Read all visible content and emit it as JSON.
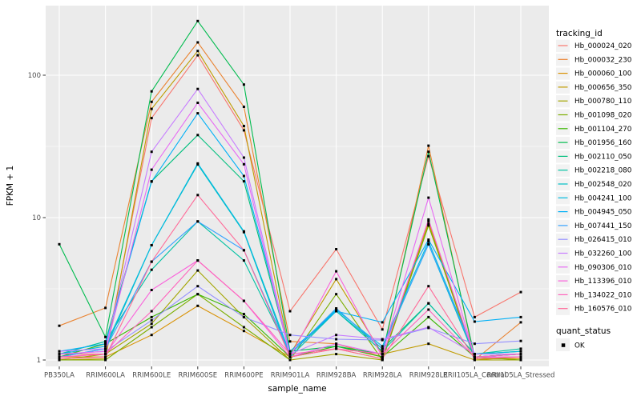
{
  "figure": {
    "y_axis": {
      "title": "FPKM + 1",
      "tick_labels": [
        "1",
        "10",
        "100"
      ],
      "tick_values": [
        1,
        10,
        100
      ]
    },
    "x_axis": {
      "title": "sample_name"
    },
    "legend": {
      "tracking_title": "tracking_id",
      "quant_title": "quant_status",
      "quant_entries": [
        {
          "label": "OK",
          "marker": "black-square"
        }
      ]
    },
    "colors": {
      "panel_background": "#EBEBEB",
      "gridline": "#FFFFFF",
      "axis_text": "#4D4D4D",
      "tick_mark": "#333333",
      "legend_key_background": "#F2F2F2",
      "point": "#000000"
    }
  },
  "chart_data": {
    "type": "line",
    "title": "",
    "xlabel": "sample_name",
    "ylabel": "FPKM + 1",
    "y_scale": "log10",
    "ylim": [
      0.9,
      316
    ],
    "y_major_ticks": [
      1,
      10,
      100
    ],
    "y_minor_ticks": [
      3.162,
      31.62,
      316.2
    ],
    "grid": "white major and minor on gray panel",
    "legend_position": "right",
    "point_marker": "black-square",
    "categories": [
      "PB350LA",
      "RRIM600LA",
      "RRIM600LE",
      "RRIM600SE",
      "RRIM600PE",
      "RRIM901LA",
      "RRIM928BA",
      "RRIM928LA",
      "RRIM928LE",
      "RRII105LA_Control",
      "RRII105LA_Stressed"
    ],
    "series": [
      {
        "name": "Hb_000024_020",
        "color": "#F8766D",
        "values": [
          1.1,
          1.1,
          50,
          138,
          41,
          2.2,
          6.0,
          1.64,
          27,
          2.0,
          3.0
        ]
      },
      {
        "name": "Hb_000032_230",
        "color": "#EA8331",
        "values": [
          1.74,
          2.32,
          65,
          170,
          60,
          1.35,
          1.3,
          1.05,
          32,
          1.0,
          1.84
        ]
      },
      {
        "name": "Hb_000060_100",
        "color": "#D89000",
        "values": [
          1.05,
          1.05,
          1.5,
          2.4,
          1.6,
          1.05,
          1.2,
          1.02,
          9.4,
          1.02,
          1.02
        ]
      },
      {
        "name": "Hb_000656_350",
        "color": "#C09B00",
        "values": [
          1.0,
          1.02,
          58,
          148,
          44,
          1.1,
          3.7,
          1.1,
          1.3,
          1.0,
          1.05
        ]
      },
      {
        "name": "Hb_000780_110",
        "color": "#A3A500",
        "values": [
          1.0,
          1.1,
          1.8,
          4.25,
          2.0,
          1.0,
          1.1,
          1.0,
          9.0,
          1.0,
          1.0
        ]
      },
      {
        "name": "Hb_001098_020",
        "color": "#7CAE00",
        "values": [
          1.0,
          1.0,
          1.7,
          2.9,
          1.7,
          1.0,
          2.9,
          1.0,
          8.8,
          1.05,
          1.0
        ]
      },
      {
        "name": "Hb_001104_270",
        "color": "#39B600",
        "values": [
          1.05,
          1.3,
          2.0,
          2.9,
          2.1,
          1.05,
          1.25,
          1.05,
          2.0,
          1.05,
          1.1
        ]
      },
      {
        "name": "Hb_001956_160",
        "color": "#00BB4E",
        "values": [
          6.5,
          1.45,
          77,
          240,
          86,
          1.15,
          1.25,
          1.1,
          29,
          1.05,
          1.1
        ]
      },
      {
        "name": "Hb_002110_050",
        "color": "#00BF7D",
        "values": [
          1.1,
          1.35,
          18,
          38,
          18,
          1.1,
          2.3,
          1.2,
          2.5,
          1.1,
          1.15
        ]
      },
      {
        "name": "Hb_002218_080",
        "color": "#00C1A3",
        "values": [
          1.1,
          1.35,
          4.3,
          9.4,
          5.0,
          1.1,
          2.2,
          1.15,
          2.5,
          1.1,
          1.2
        ]
      },
      {
        "name": "Hb_002548_020",
        "color": "#00BFC4",
        "values": [
          1.05,
          1.2,
          6.4,
          23.6,
          7.9,
          1.05,
          2.2,
          1.2,
          6.5,
          1.05,
          1.1
        ]
      },
      {
        "name": "Hb_004241_100",
        "color": "#00BAE0",
        "values": [
          1.1,
          1.25,
          6.4,
          24,
          8.0,
          1.1,
          2.25,
          1.25,
          6.8,
          1.1,
          1.15
        ]
      },
      {
        "name": "Hb_004945_050",
        "color": "#00B0F6",
        "values": [
          1.15,
          1.3,
          17.9,
          54,
          19.6,
          1.15,
          2.2,
          1.84,
          7.0,
          1.86,
          2.0
        ]
      },
      {
        "name": "Hb_007441_150",
        "color": "#35A2FF",
        "values": [
          1.05,
          1.2,
          4.9,
          9.4,
          5.9,
          1.1,
          2.3,
          1.2,
          6.5,
          1.1,
          1.1
        ]
      },
      {
        "name": "Hb_026415_010",
        "color": "#9590FF",
        "values": [
          1.1,
          1.15,
          1.9,
          3.3,
          2.0,
          1.5,
          1.4,
          1.38,
          1.68,
          1.3,
          1.36
        ]
      },
      {
        "name": "Hb_032260_100",
        "color": "#C77CFF",
        "values": [
          1.15,
          1.2,
          29,
          80,
          26.4,
          1.1,
          1.5,
          1.4,
          1.7,
          1.1,
          1.1
        ]
      },
      {
        "name": "Hb_090306_010",
        "color": "#E76BF3",
        "values": [
          1.1,
          1.15,
          21.7,
          64,
          23.7,
          1.05,
          1.3,
          1.1,
          13.8,
          1.05,
          1.05
        ]
      },
      {
        "name": "Hb_113396_010",
        "color": "#FA62DB",
        "values": [
          1.05,
          1.1,
          3.1,
          5.0,
          2.6,
          1.05,
          4.2,
          1.05,
          9.7,
          1.05,
          1.05
        ]
      },
      {
        "name": "Hb_134022_010",
        "color": "#FF62BC",
        "values": [
          1.05,
          1.1,
          2.2,
          5.0,
          2.6,
          1.1,
          1.2,
          1.1,
          2.26,
          1.05,
          1.1
        ]
      },
      {
        "name": "Hb_160576_010",
        "color": "#FF6A98",
        "values": [
          1.02,
          1.05,
          4.9,
          14.4,
          5.9,
          1.05,
          1.2,
          1.02,
          3.3,
          1.02,
          1.05
        ]
      }
    ]
  }
}
